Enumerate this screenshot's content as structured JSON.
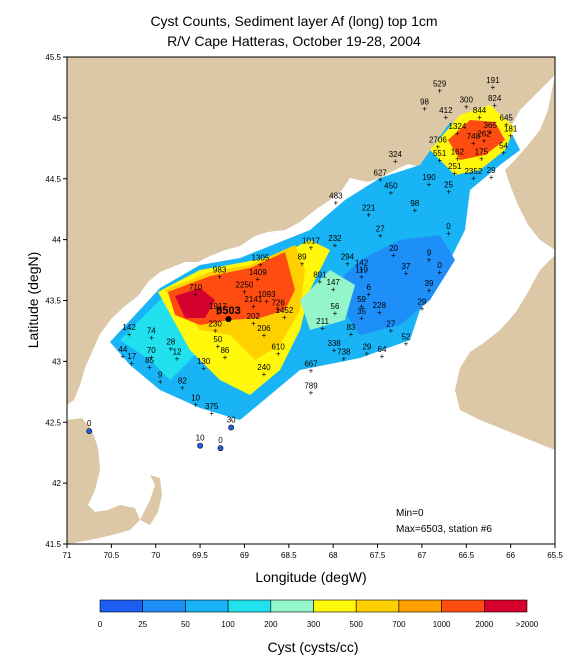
{
  "title": "Cyst Counts, Sediment layer Af (long) top 1cm",
  "subtitle": "R/V Cape Hatteras, October 19-28, 2004",
  "xlabel": "Longitude (degW)",
  "ylabel": "Latitude (degN)",
  "colorbar_label": "Cyst (cysts/cc)",
  "note_min": "Min=0",
  "note_max": "Max=6503, station #6",
  "colors": {
    "land": "#dcc7a6",
    "water": "#ffffff",
    "frame": "#000000"
  },
  "chart_data": {
    "type": "heatmap",
    "xlim": [
      -71,
      -65.5
    ],
    "ylim": [
      41.5,
      45.5
    ],
    "x_ticks": [
      "71",
      "70.5",
      "70",
      "69.5",
      "69",
      "68.5",
      "68",
      "67.5",
      "67",
      "66.5",
      "66",
      "65.5"
    ],
    "y_ticks": [
      "41.5",
      "42",
      "42.5",
      "43",
      "43.5",
      "44",
      "44.5",
      "45",
      "45.5"
    ],
    "colorbar_ticks": [
      "0",
      "25",
      "50",
      "100",
      "200",
      "300",
      "500",
      "700",
      "1000",
      "2000",
      ">2000"
    ],
    "colorbar_colors": [
      "#1c5ef0",
      "#1e8ef8",
      "#18b4f5",
      "#21e1ef",
      "#93f5c9",
      "#fff80a",
      "#ffd000",
      "#ffa000",
      "#ff4d12",
      "#d5002c"
    ],
    "stations": [
      {
        "v": "6503",
        "x": -69.18,
        "y": 43.38
      },
      {
        "v": "1917",
        "x": -69.3,
        "y": 43.42
      },
      {
        "v": "2250",
        "x": -69.0,
        "y": 43.6
      },
      {
        "v": "2141",
        "x": -68.9,
        "y": 43.48
      },
      {
        "v": "983",
        "x": -69.28,
        "y": 43.72
      },
      {
        "v": "710",
        "x": -69.55,
        "y": 43.58
      },
      {
        "v": "1305",
        "x": -68.82,
        "y": 43.82
      },
      {
        "v": "1409",
        "x": -68.85,
        "y": 43.7
      },
      {
        "v": "1093",
        "x": -68.75,
        "y": 43.52
      },
      {
        "v": "726",
        "x": -68.62,
        "y": 43.45
      },
      {
        "v": "1452",
        "x": -68.55,
        "y": 43.39
      },
      {
        "v": "1017",
        "x": -68.25,
        "y": 43.96
      },
      {
        "v": "891",
        "x": -68.15,
        "y": 43.68
      },
      {
        "v": "89",
        "x": -68.35,
        "y": 43.83
      },
      {
        "v": "232",
        "x": -67.98,
        "y": 43.98
      },
      {
        "v": "294",
        "x": -67.84,
        "y": 43.83
      },
      {
        "v": "142",
        "x": -67.68,
        "y": 43.78
      },
      {
        "v": "119",
        "x": -67.68,
        "y": 43.72
      },
      {
        "v": "147",
        "x": -68.0,
        "y": 43.62
      },
      {
        "v": "211",
        "x": -68.12,
        "y": 43.3
      },
      {
        "v": "338",
        "x": -67.99,
        "y": 43.12
      },
      {
        "v": "738",
        "x": -67.88,
        "y": 43.05
      },
      {
        "v": "667",
        "x": -68.25,
        "y": 42.95
      },
      {
        "v": "789",
        "x": -68.25,
        "y": 42.77
      },
      {
        "v": "610",
        "x": -68.62,
        "y": 43.09
      },
      {
        "v": "240",
        "x": -68.78,
        "y": 42.92
      },
      {
        "v": "206",
        "x": -68.78,
        "y": 43.24
      },
      {
        "v": "202",
        "x": -68.9,
        "y": 43.34
      },
      {
        "v": "230",
        "x": -69.33,
        "y": 43.28
      },
      {
        "v": "50",
        "x": -69.3,
        "y": 43.15
      },
      {
        "v": "86",
        "x": -69.22,
        "y": 43.06
      },
      {
        "v": "130",
        "x": -69.46,
        "y": 42.97
      },
      {
        "v": "82",
        "x": -69.7,
        "y": 42.81
      },
      {
        "v": "10",
        "x": -69.55,
        "y": 42.67
      },
      {
        "v": "375",
        "x": -69.37,
        "y": 42.6
      },
      {
        "v": "30",
        "x": -69.15,
        "y": 42.49
      },
      {
        "v": "12",
        "x": -69.76,
        "y": 43.05
      },
      {
        "v": "28",
        "x": -69.83,
        "y": 43.13
      },
      {
        "v": "70",
        "x": -70.05,
        "y": 43.06
      },
      {
        "v": "74",
        "x": -70.05,
        "y": 43.22
      },
      {
        "v": "142",
        "x": -70.3,
        "y": 43.25
      },
      {
        "v": "44",
        "x": -70.37,
        "y": 43.07
      },
      {
        "v": "17",
        "x": -70.27,
        "y": 43.01
      },
      {
        "v": "85",
        "x": -70.07,
        "y": 42.98
      },
      {
        "v": "9",
        "x": -69.95,
        "y": 42.86
      },
      {
        "v": "56",
        "x": -67.98,
        "y": 43.42
      },
      {
        "v": "59",
        "x": -67.68,
        "y": 43.48
      },
      {
        "v": "35",
        "x": -67.68,
        "y": 43.38
      },
      {
        "v": "83",
        "x": -67.8,
        "y": 43.25
      },
      {
        "v": "29",
        "x": -67.62,
        "y": 43.09
      },
      {
        "v": "64",
        "x": -67.45,
        "y": 43.07
      },
      {
        "v": "228",
        "x": -67.48,
        "y": 43.43
      },
      {
        "v": "27",
        "x": -67.35,
        "y": 43.28
      },
      {
        "v": "52",
        "x": -67.18,
        "y": 43.17
      },
      {
        "v": "6",
        "x": -67.6,
        "y": 43.58
      },
      {
        "v": "29",
        "x": -67.0,
        "y": 43.46
      },
      {
        "v": "39",
        "x": -66.92,
        "y": 43.61
      },
      {
        "v": "0",
        "x": -66.8,
        "y": 43.76
      },
      {
        "v": "9",
        "x": -66.92,
        "y": 43.86
      },
      {
        "v": "37",
        "x": -67.18,
        "y": 43.75
      },
      {
        "v": "20",
        "x": -67.32,
        "y": 43.9
      },
      {
        "v": "27",
        "x": -67.47,
        "y": 44.06
      },
      {
        "v": "221",
        "x": -67.6,
        "y": 44.23
      },
      {
        "v": "483",
        "x": -67.97,
        "y": 44.33
      },
      {
        "v": "98",
        "x": -67.08,
        "y": 44.27
      },
      {
        "v": "0",
        "x": -66.7,
        "y": 44.08
      },
      {
        "v": "450",
        "x": -67.35,
        "y": 44.41
      },
      {
        "v": "627",
        "x": -67.47,
        "y": 44.52
      },
      {
        "v": "324",
        "x": -67.3,
        "y": 44.67
      },
      {
        "v": "190",
        "x": -66.92,
        "y": 44.48
      },
      {
        "v": "25",
        "x": -66.7,
        "y": 44.42
      },
      {
        "v": "2352",
        "x": -66.42,
        "y": 44.53
      },
      {
        "v": "29",
        "x": -66.22,
        "y": 44.54
      },
      {
        "v": "251",
        "x": -66.63,
        "y": 44.57
      },
      {
        "v": "551",
        "x": -66.8,
        "y": 44.68
      },
      {
        "v": "162",
        "x": -66.6,
        "y": 44.69
      },
      {
        "v": "175",
        "x": -66.33,
        "y": 44.69
      },
      {
        "v": "54",
        "x": -66.08,
        "y": 44.74
      },
      {
        "v": "2706",
        "x": -66.82,
        "y": 44.79
      },
      {
        "v": "748",
        "x": -66.42,
        "y": 44.82
      },
      {
        "v": "262",
        "x": -66.3,
        "y": 44.84
      },
      {
        "v": "1324",
        "x": -66.6,
        "y": 44.9
      },
      {
        "v": "365",
        "x": -66.23,
        "y": 44.91
      },
      {
        "v": "181",
        "x": -66.0,
        "y": 44.88
      },
      {
        "v": "412",
        "x": -66.73,
        "y": 45.03
      },
      {
        "v": "844",
        "x": -66.35,
        "y": 45.03
      },
      {
        "v": "645",
        "x": -66.05,
        "y": 44.97
      },
      {
        "v": "98",
        "x": -66.97,
        "y": 45.1
      },
      {
        "v": "300",
        "x": -66.5,
        "y": 45.12
      },
      {
        "v": "824",
        "x": -66.18,
        "y": 45.13
      },
      {
        "v": "529",
        "x": -66.8,
        "y": 45.25
      },
      {
        "v": "191",
        "x": -66.2,
        "y": 45.28
      },
      {
        "v": "0",
        "x": -70.75,
        "y": 42.46
      },
      {
        "v": "10",
        "x": -69.5,
        "y": 42.34
      },
      {
        "v": "0",
        "x": -69.27,
        "y": 42.32
      }
    ]
  }
}
